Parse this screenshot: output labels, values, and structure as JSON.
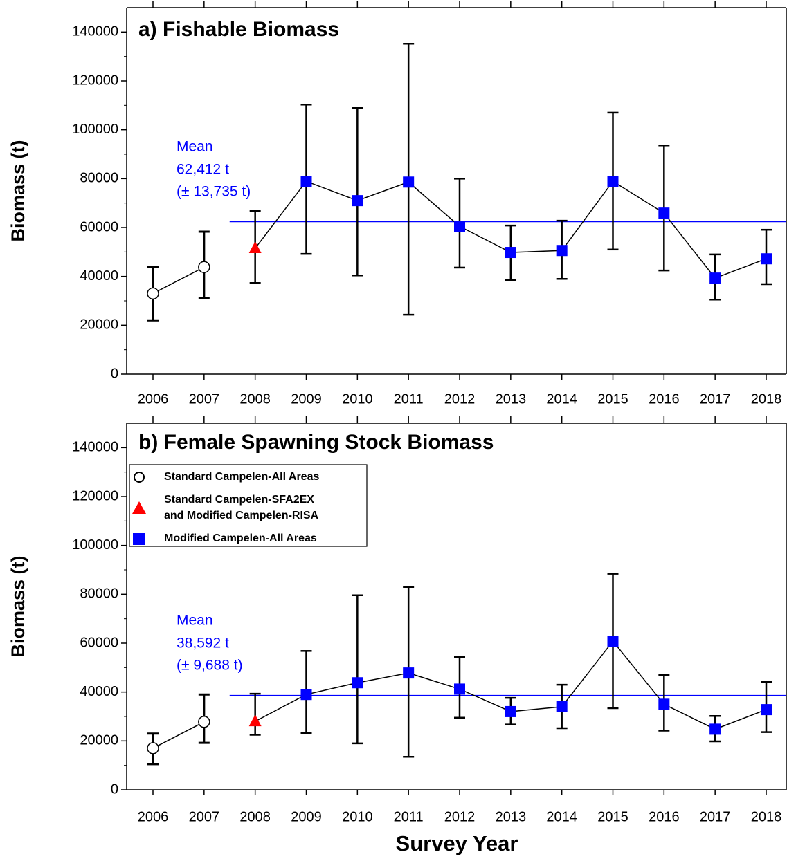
{
  "chart_data": [
    {
      "type": "line",
      "title": "a) Fishable Biomass",
      "ylabel": "Biomass (t)",
      "categories": [
        "2006",
        "2007",
        "2008",
        "2009",
        "2010",
        "2011",
        "2012",
        "2013",
        "2014",
        "2015",
        "2016",
        "2017",
        "2018"
      ],
      "ylim": [
        0,
        150000
      ],
      "yticks": [
        0,
        20000,
        40000,
        60000,
        80000,
        100000,
        120000,
        140000
      ],
      "minor_yticks": [
        10000,
        30000,
        50000,
        70000,
        90000,
        110000,
        130000
      ],
      "series": [
        {
          "name": "Standard Campelen-All Areas",
          "marker": "circle",
          "color": "#ffffff",
          "values": [
            33000,
            43800,
            null,
            null,
            null,
            null,
            null,
            null,
            null,
            null,
            null,
            null,
            null
          ],
          "lower": [
            22000,
            31000,
            null,
            null,
            null,
            null,
            null,
            null,
            null,
            null,
            null,
            null,
            null
          ],
          "upper": [
            44000,
            58300,
            null,
            null,
            null,
            null,
            null,
            null,
            null,
            null,
            null,
            null,
            null
          ]
        },
        {
          "name": "Standard Campelen-SFA2EX and Modified Campelen-RISA",
          "marker": "triangle",
          "color": "#ff0000",
          "values": [
            null,
            null,
            51500,
            null,
            null,
            null,
            null,
            null,
            null,
            null,
            null,
            null,
            null
          ],
          "lower": [
            null,
            null,
            37300,
            null,
            null,
            null,
            null,
            null,
            null,
            null,
            null,
            null,
            null
          ],
          "upper": [
            null,
            null,
            66800,
            null,
            null,
            null,
            null,
            null,
            null,
            null,
            null,
            null,
            null
          ]
        },
        {
          "name": "Modified Campelen-All Areas",
          "marker": "square",
          "color": "#0000ff",
          "values": [
            null,
            null,
            null,
            78900,
            71000,
            78600,
            60500,
            49800,
            50600,
            78900,
            65900,
            39300,
            47200
          ],
          "lower": [
            null,
            null,
            null,
            49200,
            40400,
            24300,
            43600,
            38500,
            39000,
            51000,
            42400,
            30500,
            36800
          ],
          "upper": [
            null,
            null,
            null,
            110300,
            108900,
            135200,
            80000,
            60800,
            62800,
            107000,
            93600,
            49000,
            59100
          ]
        }
      ],
      "mean": 62412,
      "mean_color": "#0000ff",
      "mean_label": [
        "Mean",
        "62,412 t",
        "(± 13,735 t)"
      ]
    },
    {
      "type": "line",
      "title": "b) Female Spawning Stock Biomass",
      "ylabel": "Biomass (t)",
      "xlabel": "Survey Year",
      "categories": [
        "2006",
        "2007",
        "2008",
        "2009",
        "2010",
        "2011",
        "2012",
        "2013",
        "2014",
        "2015",
        "2016",
        "2017",
        "2018"
      ],
      "ylim": [
        0,
        150000
      ],
      "yticks": [
        0,
        20000,
        40000,
        60000,
        80000,
        100000,
        120000,
        140000
      ],
      "minor_yticks": [
        10000,
        30000,
        50000,
        70000,
        90000,
        110000,
        130000
      ],
      "legend": "upper left",
      "series": [
        {
          "name": "Standard Campelen-All Areas",
          "marker": "circle",
          "color": "#ffffff",
          "values": [
            17000,
            27800,
            null,
            null,
            null,
            null,
            null,
            null,
            null,
            null,
            null,
            null,
            null
          ],
          "lower": [
            10500,
            19200,
            null,
            null,
            null,
            null,
            null,
            null,
            null,
            null,
            null,
            null,
            null
          ],
          "upper": [
            23000,
            39000,
            null,
            null,
            null,
            null,
            null,
            null,
            null,
            null,
            null,
            null,
            null
          ]
        },
        {
          "name": "Standard Campelen-SFA2EX and Modified Campelen-RISA",
          "marker": "triangle",
          "color": "#ff0000",
          "values": [
            null,
            null,
            28000,
            null,
            null,
            null,
            null,
            null,
            null,
            null,
            null,
            null,
            null
          ],
          "lower": [
            null,
            null,
            22500,
            null,
            null,
            null,
            null,
            null,
            null,
            null,
            null,
            null,
            null
          ],
          "upper": [
            null,
            null,
            39300,
            null,
            null,
            null,
            null,
            null,
            null,
            null,
            null,
            null,
            null
          ]
        },
        {
          "name": "Modified Campelen-All Areas",
          "marker": "square",
          "color": "#0000ff",
          "values": [
            null,
            null,
            null,
            39000,
            43800,
            47800,
            41200,
            32000,
            34000,
            60800,
            35000,
            24800,
            32800
          ],
          "lower": [
            null,
            null,
            null,
            23200,
            19000,
            13500,
            29500,
            26700,
            25200,
            33400,
            24200,
            19800,
            23600
          ],
          "upper": [
            null,
            null,
            null,
            56800,
            79600,
            83000,
            54400,
            37600,
            43000,
            88400,
            47000,
            30200,
            44200
          ]
        }
      ],
      "mean": 38592,
      "mean_color": "#0000ff",
      "mean_label": [
        "Mean",
        "38,592 t",
        "(± 9,688 t)"
      ]
    }
  ]
}
